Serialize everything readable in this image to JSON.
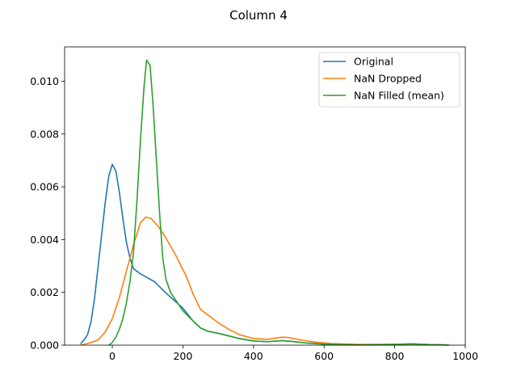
{
  "chart_data": {
    "type": "line",
    "title": "Column 4",
    "xlabel": "",
    "ylabel": "",
    "xlim": [
      -135,
      1000
    ],
    "ylim": [
      0,
      0.0113
    ],
    "x_ticks": [
      0,
      200,
      400,
      600,
      800,
      1000
    ],
    "y_ticks": [
      0.0,
      0.002,
      0.004,
      0.006,
      0.008,
      0.01
    ],
    "y_tick_labels": [
      "0.000",
      "0.002",
      "0.004",
      "0.006",
      "0.008",
      "0.010"
    ],
    "grid": false,
    "legend_position": "top-right",
    "series": [
      {
        "name": "Original",
        "color": "#1f77b4",
        "points": [
          [
            -90,
            5e-05
          ],
          [
            -80,
            0.0002
          ],
          [
            -70,
            0.0004
          ],
          [
            -60,
            0.0009
          ],
          [
            -50,
            0.0018
          ],
          [
            -40,
            0.003
          ],
          [
            -30,
            0.0042
          ],
          [
            -20,
            0.0054
          ],
          [
            -10,
            0.0064
          ],
          [
            0,
            0.00685
          ],
          [
            10,
            0.0066
          ],
          [
            20,
            0.0058
          ],
          [
            30,
            0.0048
          ],
          [
            40,
            0.0039
          ],
          [
            50,
            0.0033
          ],
          [
            60,
            0.0029
          ],
          [
            80,
            0.0027
          ],
          [
            100,
            0.00255
          ],
          [
            120,
            0.0024
          ],
          [
            150,
            0.002
          ],
          [
            200,
            0.0014
          ],
          [
            230,
            0.0009
          ],
          [
            250,
            0.00065
          ],
          [
            270,
            0.00053
          ],
          [
            300,
            0.00045
          ],
          [
            330,
            0.00035
          ],
          [
            360,
            0.00025
          ],
          [
            400,
            0.00016
          ],
          [
            440,
            0.00013
          ],
          [
            480,
            0.00017
          ],
          [
            510,
            0.00014
          ],
          [
            550,
            8e-05
          ],
          [
            600,
            4e-05
          ],
          [
            650,
            2e-05
          ],
          [
            700,
            1e-05
          ],
          [
            800,
            3e-05
          ],
          [
            850,
            5e-05
          ],
          [
            900,
            2e-05
          ],
          [
            950,
            5e-06
          ]
        ]
      },
      {
        "name": "NaN Dropped",
        "color": "#ff7f0e",
        "points": [
          [
            -90,
            0.0
          ],
          [
            -60,
            0.0001
          ],
          [
            -40,
            0.0002
          ],
          [
            -20,
            0.0005
          ],
          [
            0,
            0.001
          ],
          [
            20,
            0.0018
          ],
          [
            40,
            0.0028
          ],
          [
            60,
            0.0038
          ],
          [
            80,
            0.00465
          ],
          [
            95,
            0.00485
          ],
          [
            110,
            0.0048
          ],
          [
            130,
            0.0045
          ],
          [
            150,
            0.0041
          ],
          [
            180,
            0.0034
          ],
          [
            210,
            0.0026
          ],
          [
            230,
            0.0019
          ],
          [
            250,
            0.00135
          ],
          [
            270,
            0.00115
          ],
          [
            300,
            0.00085
          ],
          [
            330,
            0.0006
          ],
          [
            360,
            0.0004
          ],
          [
            400,
            0.00025
          ],
          [
            440,
            0.00022
          ],
          [
            480,
            0.0003
          ],
          [
            500,
            0.00029
          ],
          [
            540,
            0.00018
          ],
          [
            580,
            0.00011
          ],
          [
            620,
            6e-05
          ],
          [
            700,
            3e-05
          ],
          [
            800,
            3e-05
          ],
          [
            850,
            4e-05
          ],
          [
            900,
            2e-05
          ],
          [
            955,
            5e-06
          ]
        ]
      },
      {
        "name": "NaN Filled (mean)",
        "color": "#2ca02c",
        "points": [
          [
            -10,
            0.0
          ],
          [
            0,
            0.0001
          ],
          [
            10,
            0.0003
          ],
          [
            20,
            0.0006
          ],
          [
            30,
            0.001
          ],
          [
            40,
            0.0016
          ],
          [
            50,
            0.0024
          ],
          [
            60,
            0.0035
          ],
          [
            70,
            0.0055
          ],
          [
            80,
            0.0078
          ],
          [
            90,
            0.0098
          ],
          [
            97,
            0.0108
          ],
          [
            107,
            0.0106
          ],
          [
            115,
            0.0092
          ],
          [
            125,
            0.007
          ],
          [
            135,
            0.0048
          ],
          [
            143,
            0.0033
          ],
          [
            152,
            0.0025
          ],
          [
            165,
            0.002
          ],
          [
            180,
            0.0017
          ],
          [
            200,
            0.0013
          ],
          [
            230,
            0.0009
          ],
          [
            250,
            0.00065
          ],
          [
            270,
            0.00053
          ],
          [
            300,
            0.00045
          ],
          [
            330,
            0.00035
          ],
          [
            360,
            0.00025
          ],
          [
            400,
            0.00016
          ],
          [
            440,
            0.00013
          ],
          [
            480,
            0.00017
          ],
          [
            510,
            0.00014
          ],
          [
            550,
            8e-05
          ],
          [
            600,
            4e-05
          ],
          [
            650,
            2e-05
          ],
          [
            700,
            1e-05
          ],
          [
            800,
            3e-05
          ],
          [
            850,
            5e-05
          ],
          [
            900,
            2e-05
          ],
          [
            950,
            5e-06
          ]
        ]
      }
    ]
  }
}
